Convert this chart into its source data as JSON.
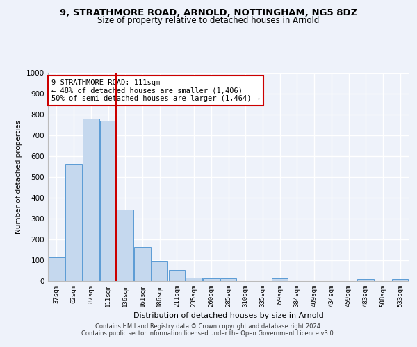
{
  "title1": "9, STRATHMORE ROAD, ARNOLD, NOTTINGHAM, NG5 8DZ",
  "title2": "Size of property relative to detached houses in Arnold",
  "xlabel": "Distribution of detached houses by size in Arnold",
  "ylabel": "Number of detached properties",
  "categories": [
    "37sqm",
    "62sqm",
    "87sqm",
    "111sqm",
    "136sqm",
    "161sqm",
    "186sqm",
    "211sqm",
    "235sqm",
    "260sqm",
    "285sqm",
    "310sqm",
    "335sqm",
    "359sqm",
    "384sqm",
    "409sqm",
    "434sqm",
    "459sqm",
    "483sqm",
    "508sqm",
    "533sqm"
  ],
  "values": [
    113,
    559,
    779,
    770,
    343,
    165,
    98,
    53,
    18,
    13,
    13,
    0,
    0,
    12,
    0,
    0,
    0,
    0,
    9,
    0,
    9
  ],
  "bar_color": "#c5d8ee",
  "bar_edge_color": "#5b9bd5",
  "vline_color": "#cc0000",
  "annotation_text": "9 STRATHMORE ROAD: 111sqm\n← 48% of detached houses are smaller (1,406)\n50% of semi-detached houses are larger (1,464) →",
  "annotation_box_color": "white",
  "annotation_box_edge_color": "#cc0000",
  "footer1": "Contains HM Land Registry data © Crown copyright and database right 2024.",
  "footer2": "Contains public sector information licensed under the Open Government Licence v3.0.",
  "ylim": [
    0,
    1000
  ],
  "bg_color": "#eef2fa",
  "grid_color": "white",
  "title1_fontsize": 9.5,
  "title2_fontsize": 8.5,
  "vline_index": 3
}
